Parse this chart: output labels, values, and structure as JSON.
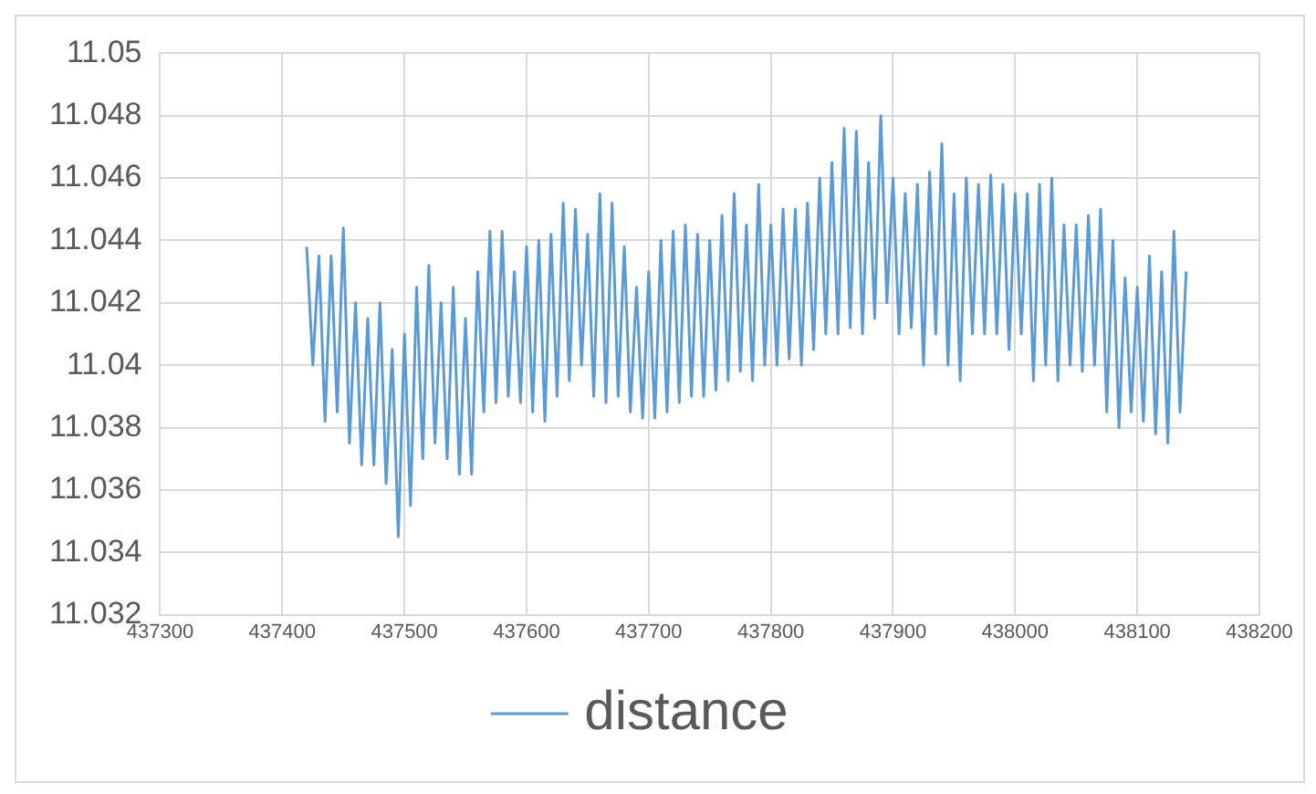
{
  "chart_data": {
    "type": "line",
    "xlim": [
      437300,
      438200
    ],
    "xticks": [
      437300,
      437400,
      437500,
      437600,
      437700,
      437800,
      437900,
      438000,
      438100,
      438200
    ],
    "ylim": [
      11.032,
      11.05
    ],
    "yticks": [
      11.032,
      11.034,
      11.036,
      11.038,
      11.04,
      11.042,
      11.044,
      11.046,
      11.048,
      11.05
    ],
    "grid": true,
    "legend": "bottom",
    "marker": "none",
    "line_style": "solid",
    "series": [
      {
        "name": "distance",
        "color": "#5b9bd5",
        "x": [
          437420,
          437425,
          437430,
          437435,
          437440,
          437445,
          437450,
          437455,
          437460,
          437465,
          437470,
          437475,
          437480,
          437485,
          437490,
          437495,
          437500,
          437505,
          437510,
          437515,
          437520,
          437525,
          437530,
          437535,
          437540,
          437545,
          437550,
          437555,
          437560,
          437565,
          437570,
          437575,
          437580,
          437585,
          437590,
          437595,
          437600,
          437605,
          437610,
          437615,
          437620,
          437625,
          437630,
          437635,
          437640,
          437645,
          437650,
          437655,
          437660,
          437665,
          437670,
          437675,
          437680,
          437685,
          437690,
          437695,
          437700,
          437705,
          437710,
          437715,
          437720,
          437725,
          437730,
          437735,
          437740,
          437745,
          437750,
          437755,
          437760,
          437765,
          437770,
          437775,
          437780,
          437785,
          437790,
          437795,
          437800,
          437805,
          437810,
          437815,
          437820,
          437825,
          437830,
          437835,
          437840,
          437845,
          437850,
          437855,
          437860,
          437865,
          437870,
          437875,
          437880,
          437885,
          437890,
          437895,
          437900,
          437905,
          437910,
          437915,
          437920,
          437925,
          437930,
          437935,
          437940,
          437945,
          437950,
          437955,
          437960,
          437965,
          437970,
          437975,
          437980,
          437985,
          437990,
          437995,
          438000,
          438005,
          438010,
          438015,
          438020,
          438025,
          438030,
          438035,
          438040,
          438045,
          438050,
          438055,
          438060,
          438065,
          438070,
          438075,
          438080,
          438085,
          438090,
          438095,
          438100,
          438105,
          438110,
          438115,
          438120,
          438125,
          438130,
          438135,
          438140
        ],
        "values": [
          11.0438,
          11.04,
          11.0435,
          11.0382,
          11.0435,
          11.0385,
          11.0444,
          11.0375,
          11.042,
          11.0368,
          11.0415,
          11.0368,
          11.042,
          11.0362,
          11.0405,
          11.0345,
          11.041,
          11.0355,
          11.0425,
          11.037,
          11.0432,
          11.0375,
          11.042,
          11.037,
          11.0425,
          11.0365,
          11.0415,
          11.0365,
          11.043,
          11.0385,
          11.0443,
          11.0388,
          11.0443,
          11.039,
          11.043,
          11.0388,
          11.0438,
          11.0385,
          11.044,
          11.0382,
          11.0442,
          11.039,
          11.0452,
          11.0395,
          11.045,
          11.04,
          11.0442,
          11.039,
          11.0455,
          11.0388,
          11.0452,
          11.039,
          11.0438,
          11.0385,
          11.0425,
          11.0383,
          11.043,
          11.0383,
          11.044,
          11.0385,
          11.0443,
          11.0388,
          11.0445,
          11.039,
          11.0442,
          11.039,
          11.044,
          11.0392,
          11.0448,
          11.0395,
          11.0455,
          11.0398,
          11.0445,
          11.0395,
          11.0458,
          11.04,
          11.0445,
          11.04,
          11.045,
          11.0402,
          11.045,
          11.04,
          11.0452,
          11.0405,
          11.046,
          11.041,
          11.0465,
          11.041,
          11.0476,
          11.0412,
          11.0475,
          11.041,
          11.0465,
          11.0415,
          11.048,
          11.042,
          11.046,
          11.041,
          11.0455,
          11.0412,
          11.0458,
          11.04,
          11.0462,
          11.041,
          11.0471,
          11.04,
          11.0455,
          11.0395,
          11.046,
          11.041,
          11.0458,
          11.041,
          11.0461,
          11.041,
          11.0458,
          11.0405,
          11.0455,
          11.041,
          11.0455,
          11.0395,
          11.0458,
          11.04,
          11.046,
          11.0395,
          11.0445,
          11.04,
          11.0445,
          11.0398,
          11.0448,
          11.04,
          11.045,
          11.0385,
          11.044,
          11.038,
          11.0428,
          11.0385,
          11.0425,
          11.0382,
          11.0435,
          11.0378,
          11.043,
          11.0375,
          11.0443,
          11.0385,
          11.043
        ]
      }
    ]
  }
}
